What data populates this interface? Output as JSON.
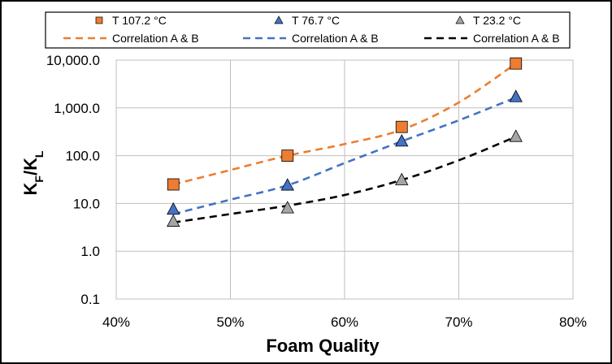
{
  "chart_data": {
    "type": "scatter",
    "xlabel": "Foam Quality",
    "ylabel": "K_F/K_L",
    "y_scale": "log",
    "xlim": [
      0.4,
      0.8
    ],
    "ylim": [
      0.1,
      10000
    ],
    "x_ticks": [
      "40%",
      "50%",
      "60%",
      "70%",
      "80%"
    ],
    "y_ticks": [
      "0.1",
      "1.0",
      "10.0",
      "100.0",
      "1,000.0",
      "10,000.0"
    ],
    "grid": true,
    "legend_position": "top",
    "series": [
      {
        "name": "T  107.2  °C",
        "kind": "markers",
        "marker": "square",
        "color": "#ED7D31",
        "x": [
          0.45,
          0.55,
          0.65,
          0.75
        ],
        "y": [
          25,
          100,
          400,
          8500
        ]
      },
      {
        "name": "T  76.7  °C",
        "kind": "markers",
        "marker": "triangle",
        "color": "#4472C4",
        "x": [
          0.45,
          0.55,
          0.65,
          0.75
        ],
        "y": [
          7.5,
          24,
          200,
          1700
        ]
      },
      {
        "name": "T  23.2  °C",
        "kind": "markers",
        "marker": "triangle",
        "color": "#A5A5A5",
        "x": [
          0.45,
          0.55,
          0.65,
          0.75
        ],
        "y": [
          4.2,
          8,
          31,
          250
        ]
      },
      {
        "name": "Correlation A & B",
        "kind": "dashed-line",
        "color": "#ED7D31",
        "x": [
          0.45,
          0.5,
          0.55,
          0.6,
          0.65,
          0.7,
          0.75
        ],
        "y": [
          25,
          50,
          100,
          175,
          350,
          1300,
          8500
        ]
      },
      {
        "name": "Correlation A & B",
        "kind": "dashed-line",
        "color": "#4472C4",
        "x": [
          0.45,
          0.5,
          0.55,
          0.6,
          0.65,
          0.7,
          0.75
        ],
        "y": [
          6,
          12,
          24,
          70,
          200,
          550,
          1650
        ]
      },
      {
        "name": "Correlation A & B",
        "kind": "dashed-line",
        "color": "#000000",
        "x": [
          0.45,
          0.5,
          0.55,
          0.6,
          0.65,
          0.7,
          0.75
        ],
        "y": [
          4,
          6,
          9,
          15,
          31,
          80,
          250
        ]
      }
    ]
  }
}
